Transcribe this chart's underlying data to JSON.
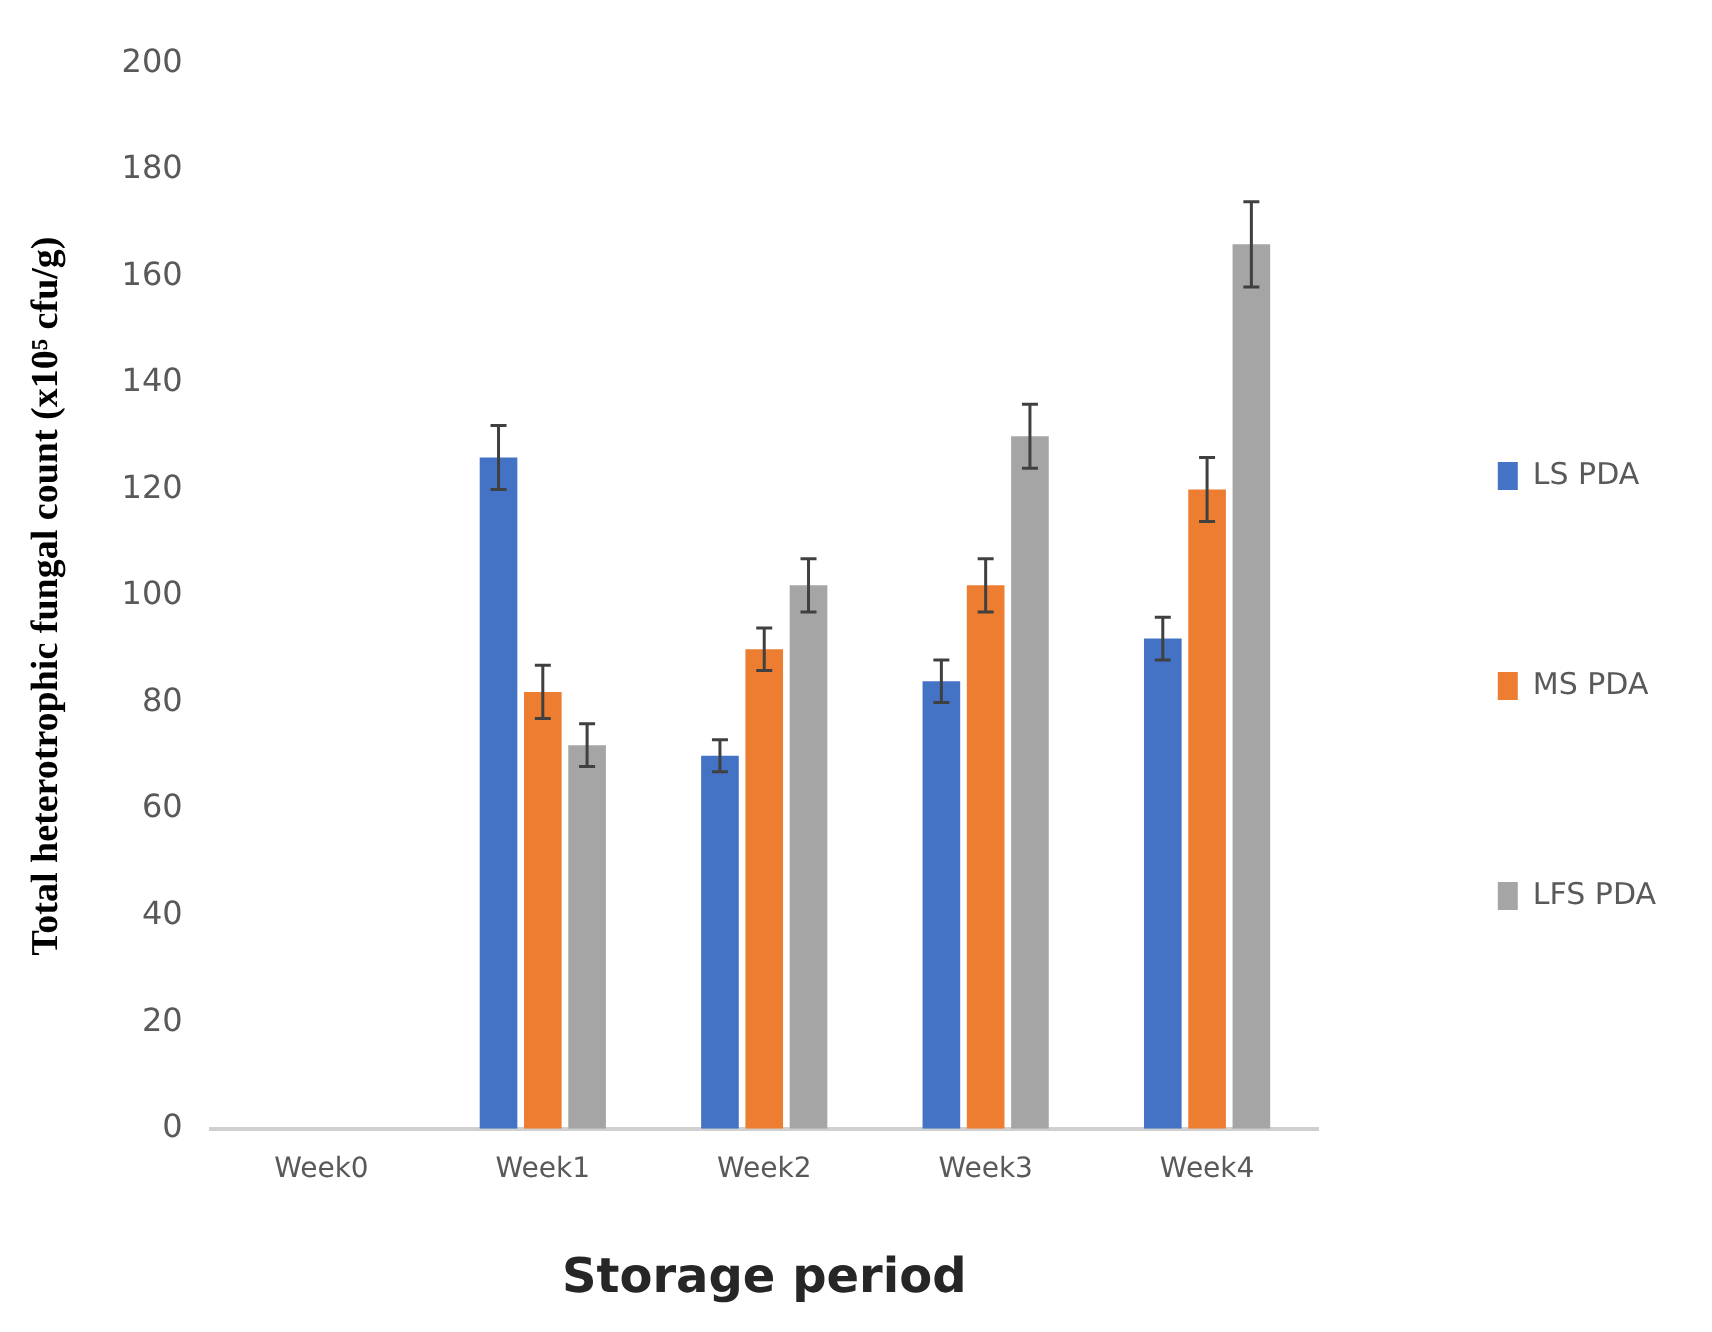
{
  "chart_data": {
    "type": "bar",
    "xlabel": "Storage period",
    "ylabel": "Total heterotrophic fungal count (x10⁵ cfu/g)",
    "categories": [
      "Week0",
      "Week1",
      "Week2",
      "Week3",
      "Week4"
    ],
    "series": [
      {
        "name": "LS PDA",
        "color": "#4472c4",
        "values": [
          0,
          126,
          70,
          84,
          92
        ],
        "errors": [
          null,
          6,
          3,
          4,
          4
        ]
      },
      {
        "name": "MS PDA",
        "color": "#ed7d31",
        "values": [
          0,
          82,
          90,
          102,
          120
        ],
        "errors": [
          null,
          5,
          4,
          5,
          6
        ]
      },
      {
        "name": "LFS PDA",
        "color": "#a5a5a5",
        "values": [
          0,
          72,
          102,
          130,
          166
        ],
        "errors": [
          null,
          4,
          5,
          6,
          8
        ]
      }
    ],
    "ylim": [
      0,
      200
    ],
    "yticks": [
      0,
      20,
      40,
      60,
      80,
      100,
      120,
      140,
      160,
      180,
      200
    ],
    "grid": false,
    "legend": "right"
  }
}
